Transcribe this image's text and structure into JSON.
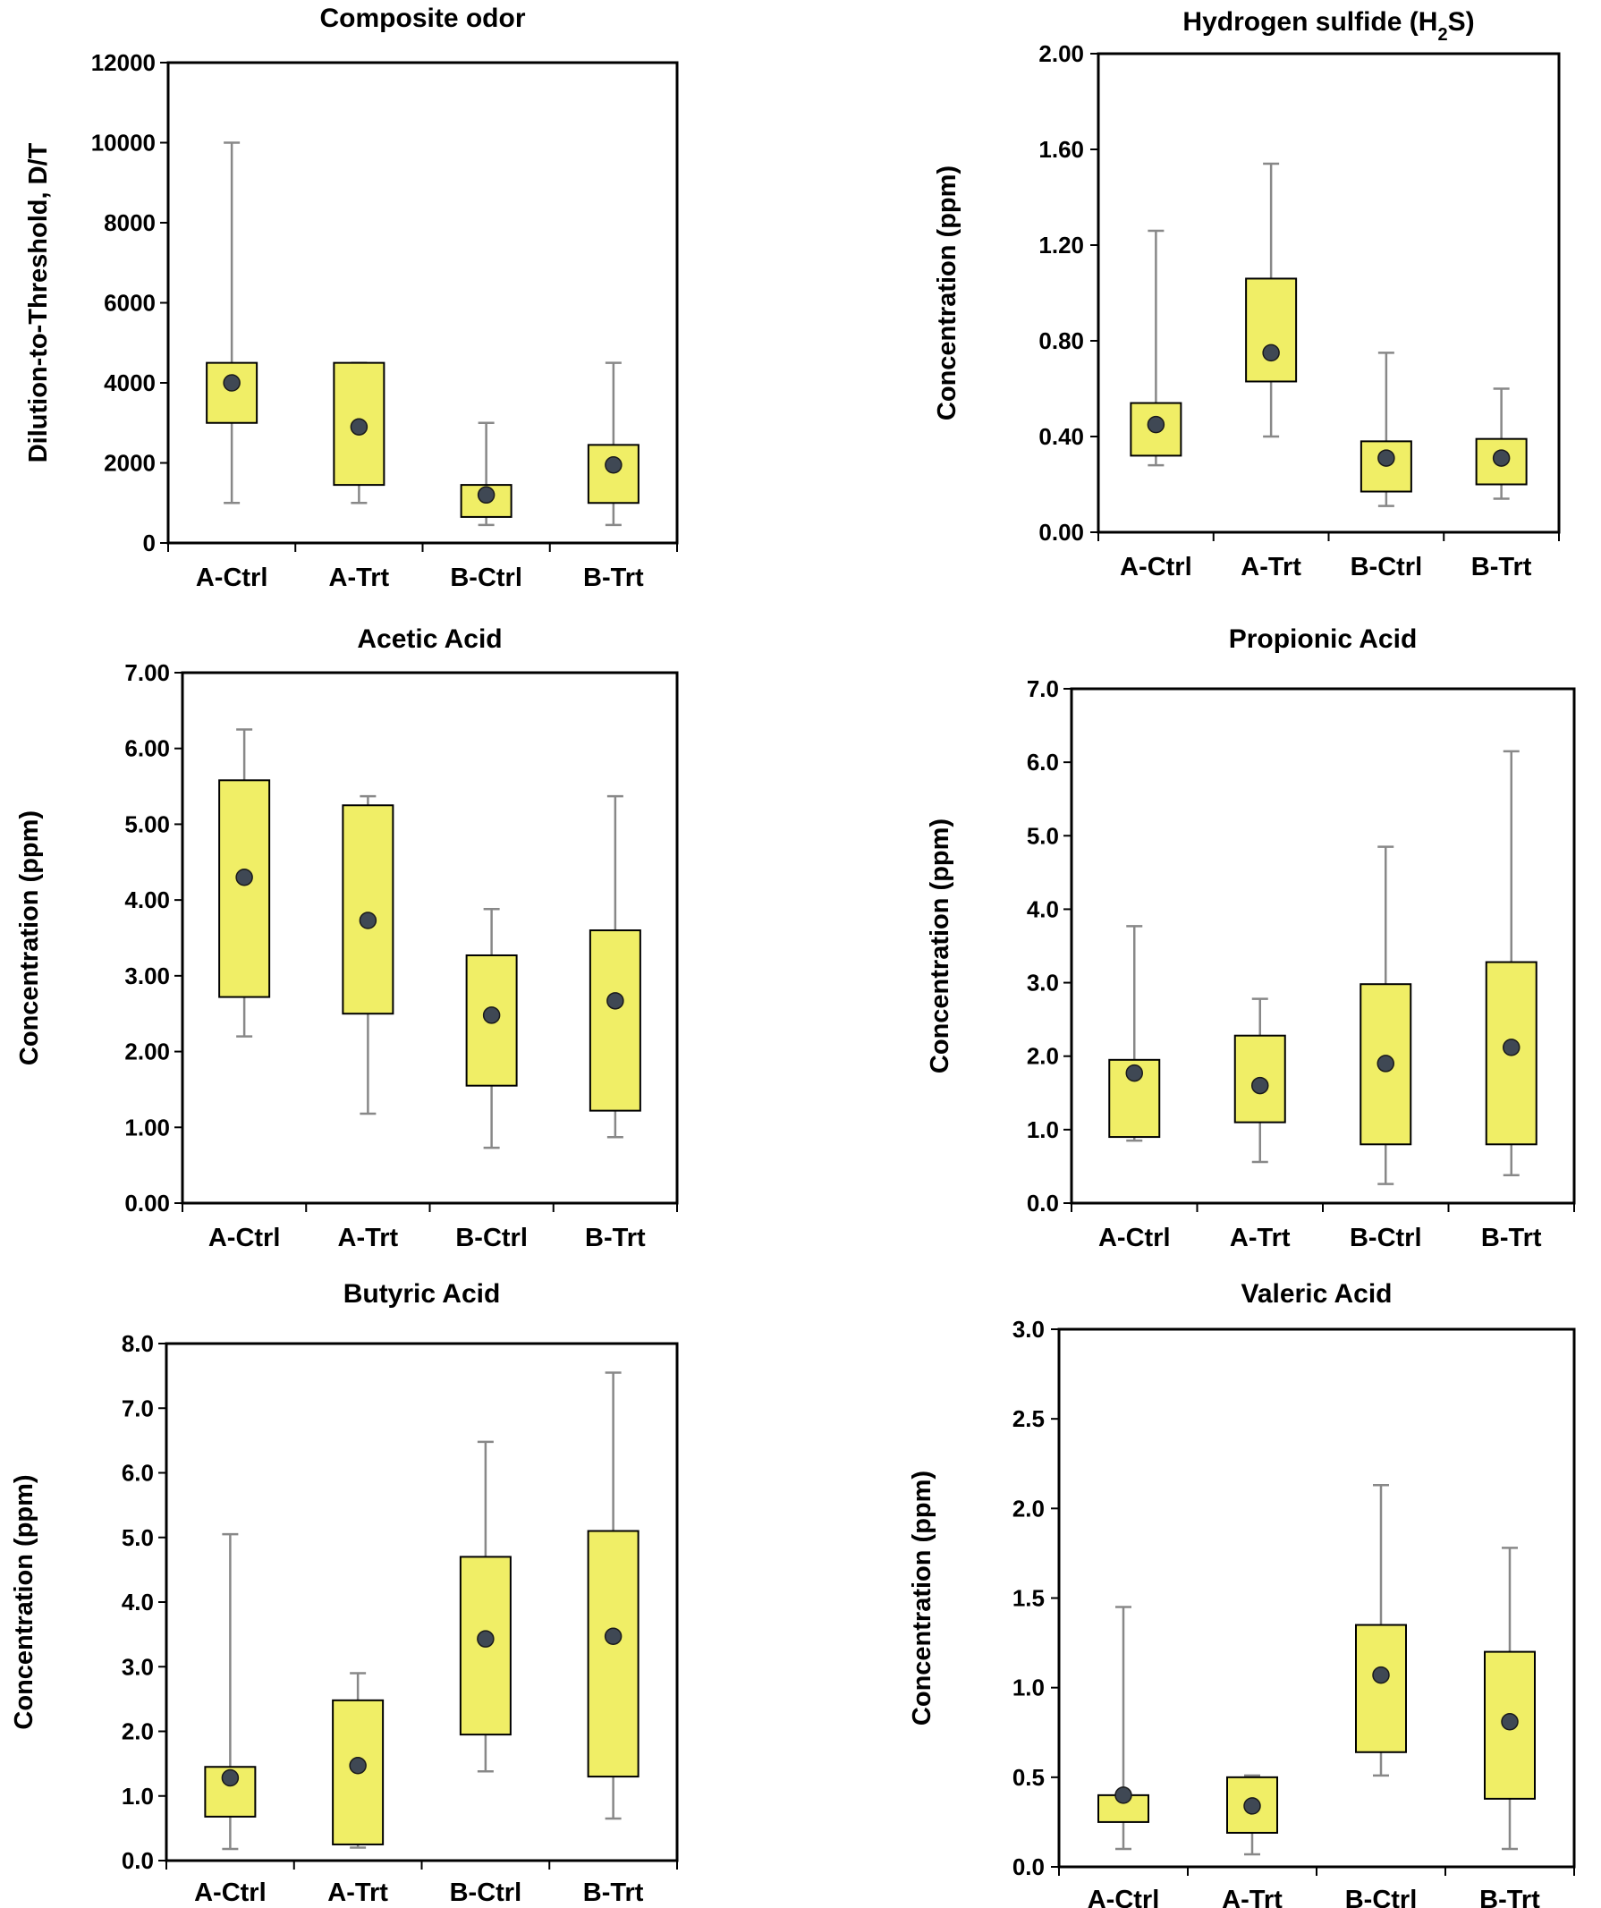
{
  "colors": {
    "box_fill": "#f0ee66",
    "mean_dot": "#3f4854",
    "whisker": "#888888",
    "frame": "#000000"
  },
  "chart_data": [
    {
      "type": "boxplot",
      "title": "Composite odor",
      "ylabel": "Dilution-to-Threshold, D/T",
      "ylim": [
        0,
        12000
      ],
      "yticks": [
        "0",
        "2000",
        "4000",
        "6000",
        "8000",
        "10000",
        "12000"
      ],
      "categories": [
        "A-Ctrl",
        "A-Trt",
        "B-Ctrl",
        "B-Trt"
      ],
      "boxes": [
        {
          "min": 1000,
          "q1": 3000,
          "q3": 4500,
          "max": 10000,
          "mean": 4000
        },
        {
          "min": 1000,
          "q1": 1450,
          "q3": 4500,
          "max": 4500,
          "mean": 2900
        },
        {
          "min": 450,
          "q1": 650,
          "q3": 1450,
          "max": 3000,
          "mean": 1200
        },
        {
          "min": 450,
          "q1": 1000,
          "q3": 2450,
          "max": 4500,
          "mean": 1950
        }
      ]
    },
    {
      "type": "boxplot",
      "title": "Hydrogen sulfide (H",
      "title_sub": "2",
      "title_end": "S)",
      "ylabel": "Concentration (ppm)",
      "ylim": [
        0,
        2
      ],
      "yticks": [
        "0.00",
        "0.40",
        "0.80",
        "1.20",
        "1.60",
        "2.00"
      ],
      "categories": [
        "A-Ctrl",
        "A-Trt",
        "B-Ctrl",
        "B-Trt"
      ],
      "boxes": [
        {
          "min": 0.28,
          "q1": 0.32,
          "q3": 0.54,
          "max": 1.26,
          "mean": 0.45
        },
        {
          "min": 0.4,
          "q1": 0.63,
          "q3": 1.06,
          "max": 1.54,
          "mean": 0.75
        },
        {
          "min": 0.11,
          "q1": 0.17,
          "q3": 0.38,
          "max": 0.75,
          "mean": 0.31
        },
        {
          "min": 0.14,
          "q1": 0.2,
          "q3": 0.39,
          "max": 0.6,
          "mean": 0.31
        }
      ]
    },
    {
      "type": "boxplot",
      "title": "Acetic Acid",
      "ylabel": "Concentration (ppm)",
      "ylim": [
        0,
        7
      ],
      "yticks": [
        "0.00",
        "1.00",
        "2.00",
        "3.00",
        "4.00",
        "5.00",
        "6.00",
        "7.00"
      ],
      "categories": [
        "A-Ctrl",
        "A-Trt",
        "B-Ctrl",
        "B-Trt"
      ],
      "boxes": [
        {
          "min": 2.2,
          "q1": 2.72,
          "q3": 5.58,
          "max": 6.25,
          "mean": 4.3
        },
        {
          "min": 1.18,
          "q1": 2.5,
          "q3": 5.25,
          "max": 5.37,
          "mean": 3.73
        },
        {
          "min": 0.73,
          "q1": 1.55,
          "q3": 3.27,
          "max": 3.88,
          "mean": 2.48
        },
        {
          "min": 0.87,
          "q1": 1.22,
          "q3": 3.6,
          "max": 5.37,
          "mean": 2.67
        }
      ]
    },
    {
      "type": "boxplot",
      "title": "Propionic Acid",
      "ylabel": "Concentration (ppm)",
      "ylim": [
        0,
        7
      ],
      "yticks": [
        "0.0",
        "1.0",
        "2.0",
        "3.0",
        "4.0",
        "5.0",
        "6.0",
        "7.0"
      ],
      "categories": [
        "A-Ctrl",
        "A-Trt",
        "B-Ctrl",
        "B-Trt"
      ],
      "boxes": [
        {
          "min": 0.85,
          "q1": 0.9,
          "q3": 1.95,
          "max": 3.77,
          "mean": 1.77
        },
        {
          "min": 0.56,
          "q1": 1.1,
          "q3": 2.28,
          "max": 2.78,
          "mean": 1.6
        },
        {
          "min": 0.26,
          "q1": 0.8,
          "q3": 2.98,
          "max": 4.85,
          "mean": 1.9
        },
        {
          "min": 0.38,
          "q1": 0.8,
          "q3": 3.28,
          "max": 6.15,
          "mean": 2.12
        }
      ]
    },
    {
      "type": "boxplot",
      "title": "Butyric Acid",
      "ylabel": "Concentration (ppm)",
      "ylim": [
        0,
        8
      ],
      "yticks": [
        "0.0",
        "1.0",
        "2.0",
        "3.0",
        "4.0",
        "5.0",
        "6.0",
        "7.0",
        "8.0"
      ],
      "categories": [
        "A-Ctrl",
        "A-Trt",
        "B-Ctrl",
        "B-Trt"
      ],
      "boxes": [
        {
          "min": 0.18,
          "q1": 0.68,
          "q3": 1.45,
          "max": 5.05,
          "mean": 1.28
        },
        {
          "min": 0.2,
          "q1": 0.25,
          "q3": 2.48,
          "max": 2.9,
          "mean": 1.47
        },
        {
          "min": 1.38,
          "q1": 1.95,
          "q3": 4.7,
          "max": 6.48,
          "mean": 3.43
        },
        {
          "min": 0.65,
          "q1": 1.3,
          "q3": 5.1,
          "max": 7.55,
          "mean": 3.47
        }
      ]
    },
    {
      "type": "boxplot",
      "title": "Valeric Acid",
      "ylabel": "Concentration (ppm)",
      "ylim": [
        0,
        3
      ],
      "yticks": [
        "0.0",
        "0.5",
        "1.0",
        "1.5",
        "2.0",
        "2.5",
        "3.0"
      ],
      "categories": [
        "A-Ctrl",
        "A-Trt",
        "B-Ctrl",
        "B-Trt"
      ],
      "boxes": [
        {
          "min": 0.1,
          "q1": 0.25,
          "q3": 0.4,
          "max": 1.45,
          "mean": 0.4
        },
        {
          "min": 0.07,
          "q1": 0.19,
          "q3": 0.5,
          "max": 0.51,
          "mean": 0.34
        },
        {
          "min": 0.51,
          "q1": 0.64,
          "q3": 1.35,
          "max": 2.13,
          "mean": 1.07
        },
        {
          "min": 0.1,
          "q1": 0.38,
          "q3": 1.2,
          "max": 1.78,
          "mean": 0.81
        }
      ]
    }
  ]
}
